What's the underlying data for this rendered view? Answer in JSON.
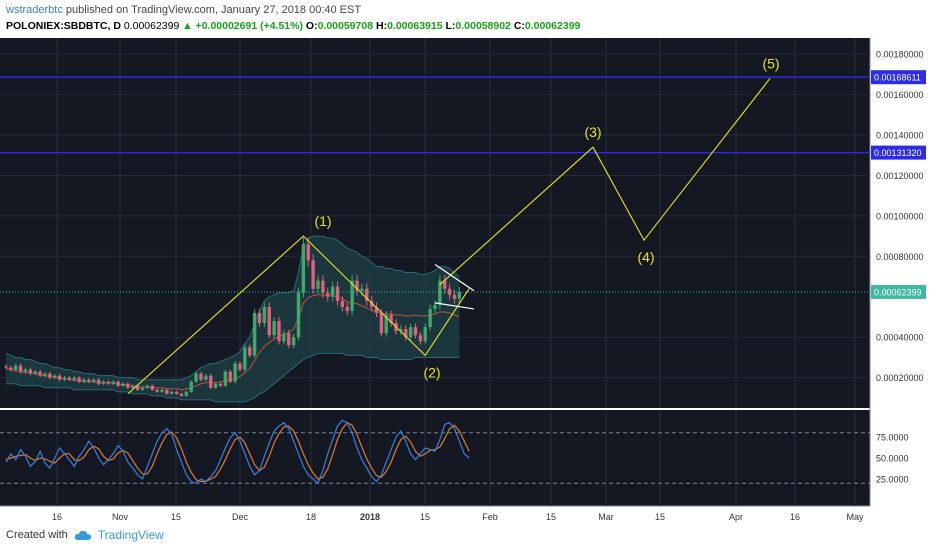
{
  "header": {
    "user": "wstraderbtc",
    "published": " published on TradingView.com, January 27, 2018 00:40 EST",
    "symbol": "POLONIEX:SBDBTC, D",
    "price": "0.00062399",
    "change": "▲ +0.00002691 (+4.51%)",
    "o_label": "O:",
    "o_value": "0.00059708",
    "h_label": "H:",
    "h_value": "0.00063915",
    "l_label": "L:",
    "l_value": "0.00058902",
    "c_label": "C:",
    "c_value": "0.00062399"
  },
  "footer": {
    "created_with": "Created with",
    "brand": "TradingView"
  },
  "colors": {
    "background": "#141823",
    "grid": "#252b3a",
    "up": "#3fa86a",
    "down": "#e0607e",
    "bollinger_fill": "#1c3d42",
    "bollinger_line": "#2a6a72",
    "wave": "#e4e42a",
    "hline": "#2b2be8",
    "stoch_k": "#3b7fe0",
    "stoch_d": "#e07a2b"
  },
  "chart_data": {
    "type": "candlestick",
    "x_ticks": [
      "16",
      "Nov",
      "15",
      "Dec",
      "18",
      "2018",
      "15",
      "Feb",
      "15",
      "Mar",
      "15",
      "Apr",
      "16",
      "May"
    ],
    "y_ticks": [
      "0.00180000",
      "0.00160000",
      "0.00140000",
      "0.00120000",
      "0.00100000",
      "0.00080000",
      "0.00040000",
      "0.00020000"
    ],
    "ylim": [
      5e-05,
      0.00188
    ],
    "price_labels": [
      {
        "text": "0.00168611",
        "value": 0.00168611
      },
      {
        "text": "0.00131320",
        "value": 0.0013132
      },
      {
        "text": "0.00062399",
        "value": 0.00062399
      }
    ],
    "horizontal_lines": [
      0.00168611,
      0.0013132
    ],
    "current_price": 0.00062399,
    "candles_close": [
      0.00025,
      0.00024,
      0.00026,
      0.00023,
      0.00024,
      0.00022,
      0.00023,
      0.00021,
      0.00022,
      0.0002,
      0.00021,
      0.00019,
      0.0002,
      0.00019,
      0.0002,
      0.00018,
      0.00019,
      0.00018,
      0.00019,
      0.00017,
      0.00018,
      0.00017,
      0.00018,
      0.00016,
      0.00017,
      0.00015,
      0.00016,
      0.00014,
      0.00015,
      0.00016,
      0.00014,
      0.00013,
      0.00014,
      0.00012,
      0.00013,
      0.00012,
      0.00011,
      0.00013,
      0.00018,
      0.00022,
      0.00019,
      0.00021,
      0.00015,
      0.00017,
      0.00016,
      0.00023,
      0.00018,
      0.00027,
      0.00024,
      0.00035,
      0.00031,
      0.00052,
      0.00047,
      0.00055,
      0.00041,
      0.00048,
      0.00038,
      0.00042,
      0.00036,
      0.0004,
      0.00062,
      0.00086,
      0.00078,
      0.00064,
      0.00068,
      0.00062,
      0.0006,
      0.00065,
      0.00058,
      0.00055,
      0.00053,
      0.00068,
      0.00063,
      0.00064,
      0.00058,
      0.00055,
      0.00052,
      0.00042,
      0.00051,
      0.00047,
      0.00043,
      0.00044,
      0.0004,
      0.00045,
      0.00041,
      0.00038,
      0.00045,
      0.00054,
      0.00056,
      0.00068,
      0.00064,
      0.00061,
      0.00059,
      0.00062399
    ],
    "bollinger_upper": [
      0.00032,
      0.00031,
      0.0003,
      0.0003,
      0.00029,
      0.00029,
      0.00028,
      0.00027,
      0.00027,
      0.00026,
      0.00025,
      0.00025,
      0.00024,
      0.00024,
      0.00023,
      0.00023,
      0.00022,
      0.00022,
      0.00022,
      0.00021,
      0.00021,
      0.00021,
      0.00021,
      0.0002,
      0.0002,
      0.0002,
      0.0002,
      0.00019,
      0.00019,
      0.00019,
      0.00019,
      0.00019,
      0.00019,
      0.00019,
      0.00019,
      0.00019,
      0.00019,
      0.0002,
      0.00021,
      0.00023,
      0.00025,
      0.00026,
      0.00027,
      0.00027,
      0.00028,
      0.00029,
      0.0003,
      0.00031,
      0.00033,
      0.00037,
      0.0004,
      0.00047,
      0.00053,
      0.00058,
      0.0006,
      0.00061,
      0.00062,
      0.00062,
      0.00062,
      0.00063,
      0.00072,
      0.00085,
      0.00089,
      0.0009,
      0.0009,
      0.0009,
      0.00089,
      0.00089,
      0.00088,
      0.00086,
      0.00084,
      0.00083,
      0.00082,
      0.0008,
      0.00079,
      0.00077,
      0.00075,
      0.00075,
      0.00074,
      0.00074,
      0.00073,
      0.00073,
      0.00072,
      0.00072,
      0.00072,
      0.00071,
      0.00071,
      0.00072,
      0.00073,
      0.00075,
      0.00075,
      0.00074,
      0.00072,
      0.0007
    ],
    "bollinger_lower": [
      0.00017,
      0.00017,
      0.00017,
      0.00016,
      0.00016,
      0.00016,
      0.00016,
      0.00016,
      0.00015,
      0.00015,
      0.00015,
      0.00015,
      0.00015,
      0.00015,
      0.00014,
      0.00014,
      0.00014,
      0.00014,
      0.00014,
      0.00014,
      0.00014,
      0.00014,
      0.00014,
      0.00013,
      0.00013,
      0.00013,
      0.00012,
      0.00012,
      0.00012,
      0.00012,
      0.00011,
      0.00011,
      0.00011,
      0.0001,
      0.0001,
      0.0001,
      9e-05,
      9e-05,
      9e-05,
      9e-05,
      9e-05,
      9e-05,
      9e-05,
      8e-05,
      8e-05,
      8e-05,
      8e-05,
      8e-05,
      8e-05,
      8e-05,
      9e-05,
      0.0001,
      0.00012,
      0.00013,
      0.00015,
      0.00017,
      0.00019,
      0.00021,
      0.00023,
      0.00025,
      0.00027,
      0.00029,
      0.0003,
      0.00031,
      0.00032,
      0.00032,
      0.00032,
      0.00032,
      0.00032,
      0.00032,
      0.00031,
      0.00031,
      0.00031,
      0.00031,
      0.0003,
      0.0003,
      0.0003,
      0.00029,
      0.00029,
      0.00029,
      0.00029,
      0.00029,
      0.00029,
      0.00029,
      0.0003,
      0.0003,
      0.0003,
      0.0003,
      0.0003,
      0.0003,
      0.0003,
      0.0003,
      0.0003,
      0.0003
    ],
    "wave_points": [
      {
        "label": "(1)",
        "value": 0.0009
      },
      {
        "label": "(2)",
        "value": 0.00031
      },
      {
        "label": "(3)",
        "value": 0.00134
      },
      {
        "label": "(4)",
        "value": 0.00088
      },
      {
        "label": "(5)",
        "value": 0.00168
      }
    ],
    "stochastic": {
      "y_ticks": [
        "75.0000",
        "50.0000",
        "25.0000"
      ],
      "levels": [
        80,
        20
      ],
      "k": [
        45,
        55,
        48,
        60,
        52,
        40,
        46,
        58,
        44,
        38,
        50,
        62,
        55,
        48,
        40,
        52,
        60,
        70,
        62,
        50,
        42,
        48,
        55,
        65,
        58,
        45,
        38,
        30,
        25,
        40,
        55,
        70,
        80,
        85,
        78,
        60,
        45,
        30,
        22,
        20,
        25,
        22,
        28,
        35,
        48,
        62,
        74,
        80,
        70,
        55,
        40,
        30,
        35,
        52,
        68,
        82,
        88,
        92,
        85,
        70,
        55,
        40,
        30,
        25,
        20,
        35,
        55,
        72,
        88,
        95,
        92,
        80,
        62,
        48,
        38,
        28,
        22,
        30,
        45,
        60,
        75,
        82,
        70,
        55,
        48,
        55,
        62,
        60,
        58,
        72,
        90,
        92,
        85,
        70,
        55,
        50
      ],
      "d": [
        48,
        50,
        52,
        53,
        54,
        50,
        47,
        50,
        49,
        46,
        44,
        50,
        55,
        55,
        48,
        47,
        51,
        60,
        64,
        61,
        52,
        47,
        49,
        56,
        59,
        56,
        47,
        38,
        31,
        31,
        40,
        55,
        68,
        78,
        81,
        74,
        61,
        45,
        33,
        24,
        22,
        22,
        25,
        28,
        37,
        48,
        61,
        72,
        75,
        68,
        55,
        42,
        35,
        39,
        52,
        68,
        79,
        87,
        88,
        82,
        70,
        55,
        42,
        32,
        25,
        27,
        37,
        54,
        72,
        85,
        92,
        89,
        78,
        63,
        49,
        38,
        29,
        27,
        34,
        45,
        60,
        72,
        76,
        69,
        58,
        52,
        55,
        59,
        60,
        63,
        73,
        85,
        89,
        82,
        70,
        58
      ]
    }
  }
}
